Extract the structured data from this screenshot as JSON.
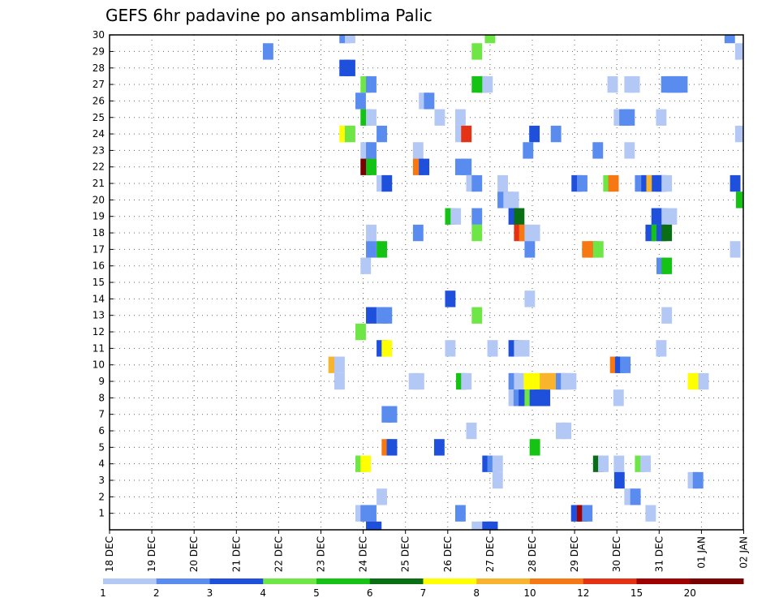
{
  "chart_data": {
    "type": "heatmap",
    "title": "GEFS 6hr padavine po ansamblima Palic",
    "x_tick_labels": [
      "18 DEC",
      "19 DEC",
      "20 DEC",
      "21 DEC",
      "22 DEC",
      "23 DEC",
      "24 DEC",
      "25 DEC",
      "26 DEC",
      "27 DEC",
      "28 DEC",
      "29 DEC",
      "30 DEC",
      "31 DEC",
      "01 JAN",
      "02 JAN"
    ],
    "y_tick_labels": [
      "1",
      "2",
      "3",
      "4",
      "5",
      "6",
      "7",
      "8",
      "9",
      "10",
      "11",
      "12",
      "13",
      "14",
      "15",
      "16",
      "17",
      "18",
      "19",
      "20",
      "21",
      "22",
      "23",
      "24",
      "25",
      "26",
      "27",
      "28",
      "29",
      "30"
    ],
    "xlim": [
      0,
      15
    ],
    "ylim": [
      0,
      30
    ],
    "grid": true,
    "colorbar": {
      "labels": [
        "1",
        "2",
        "3",
        "4",
        "5",
        "6",
        "7",
        "8",
        "10",
        "12",
        "15",
        "20"
      ],
      "colors": [
        "#b4c8f5",
        "#5a8cf0",
        "#1e50dc",
        "#6ee646",
        "#14c314",
        "#0a6e14",
        "#ffff00",
        "#f8b42d",
        "#f57814",
        "#e63214",
        "#a00000",
        "#7a0000"
      ]
    },
    "cells": [
      [
        5.56,
        30,
        1
      ],
      [
        5.69,
        30,
        0
      ],
      [
        9.0,
        30,
        3
      ],
      [
        14.67,
        30,
        1
      ],
      [
        14.92,
        29,
        0
      ],
      [
        3.75,
        29,
        1
      ],
      [
        8.69,
        29,
        3
      ],
      [
        5.56,
        28,
        2
      ],
      [
        5.69,
        28,
        2
      ],
      [
        6.06,
        27,
        3
      ],
      [
        6.19,
        27,
        1
      ],
      [
        8.69,
        27,
        4
      ],
      [
        8.82,
        27,
        4
      ],
      [
        8.94,
        27,
        0
      ],
      [
        11.9,
        27,
        0
      ],
      [
        12.3,
        27,
        0
      ],
      [
        12.42,
        27,
        0
      ],
      [
        13.17,
        27,
        1
      ],
      [
        13.3,
        27,
        1
      ],
      [
        13.42,
        27,
        1
      ],
      [
        13.55,
        27,
        1
      ],
      [
        5.94,
        26,
        1
      ],
      [
        7.44,
        26,
        0
      ],
      [
        7.56,
        26,
        1
      ],
      [
        6.06,
        25,
        4
      ],
      [
        6.19,
        25,
        0
      ],
      [
        7.81,
        25,
        0
      ],
      [
        8.3,
        25,
        0
      ],
      [
        12.05,
        25,
        0
      ],
      [
        12.18,
        25,
        1
      ],
      [
        12.3,
        25,
        1
      ],
      [
        13.05,
        25,
        0
      ],
      [
        5.56,
        24,
        6
      ],
      [
        5.69,
        24,
        3
      ],
      [
        6.44,
        24,
        1
      ],
      [
        8.3,
        24,
        0
      ],
      [
        8.44,
        24,
        9
      ],
      [
        10.05,
        24,
        2
      ],
      [
        10.56,
        24,
        1
      ],
      [
        14.92,
        24,
        0
      ],
      [
        6.06,
        23,
        0
      ],
      [
        6.19,
        23,
        1
      ],
      [
        7.3,
        23,
        0
      ],
      [
        9.9,
        23,
        1
      ],
      [
        11.55,
        23,
        1
      ],
      [
        12.3,
        23,
        0
      ],
      [
        6.06,
        22,
        11
      ],
      [
        6.19,
        22,
        4
      ],
      [
        7.3,
        22,
        8
      ],
      [
        7.44,
        22,
        2
      ],
      [
        8.3,
        22,
        1
      ],
      [
        8.44,
        22,
        1
      ],
      [
        6.44,
        21,
        0
      ],
      [
        6.56,
        21,
        2
      ],
      [
        8.56,
        21,
        0
      ],
      [
        8.69,
        21,
        1
      ],
      [
        9.3,
        21,
        0
      ],
      [
        11.05,
        21,
        2
      ],
      [
        11.18,
        21,
        1
      ],
      [
        11.8,
        21,
        3
      ],
      [
        11.92,
        21,
        8
      ],
      [
        12.55,
        21,
        1
      ],
      [
        12.7,
        21,
        2
      ],
      [
        12.82,
        21,
        7
      ],
      [
        12.95,
        21,
        2
      ],
      [
        13.05,
        21,
        2
      ],
      [
        13.18,
        21,
        0
      ],
      [
        14.8,
        21,
        2
      ],
      [
        9.3,
        20,
        1
      ],
      [
        9.44,
        20,
        0
      ],
      [
        9.56,
        20,
        0
      ],
      [
        14.94,
        20,
        4
      ],
      [
        8.06,
        19,
        4
      ],
      [
        8.19,
        19,
        0
      ],
      [
        8.69,
        19,
        1
      ],
      [
        9.56,
        19,
        2
      ],
      [
        9.69,
        19,
        5
      ],
      [
        12.94,
        19,
        2
      ],
      [
        13.06,
        19,
        2
      ],
      [
        13.18,
        19,
        0
      ],
      [
        13.3,
        19,
        0
      ],
      [
        6.19,
        18,
        0
      ],
      [
        7.3,
        18,
        1
      ],
      [
        8.69,
        18,
        3
      ],
      [
        9.69,
        18,
        9
      ],
      [
        9.81,
        18,
        8
      ],
      [
        9.94,
        18,
        0
      ],
      [
        10.06,
        18,
        0
      ],
      [
        12.8,
        18,
        2
      ],
      [
        12.94,
        18,
        4
      ],
      [
        13.06,
        18,
        2
      ],
      [
        13.18,
        18,
        5
      ],
      [
        6.19,
        17,
        1
      ],
      [
        6.44,
        17,
        4
      ],
      [
        9.94,
        17,
        1
      ],
      [
        11.3,
        17,
        8
      ],
      [
        11.44,
        17,
        8
      ],
      [
        11.56,
        17,
        3
      ],
      [
        14.8,
        17,
        0
      ],
      [
        6.06,
        16,
        0
      ],
      [
        13.06,
        16,
        1
      ],
      [
        13.18,
        16,
        4
      ],
      [
        8.06,
        14,
        2
      ],
      [
        9.94,
        14,
        0
      ],
      [
        6.19,
        13,
        2
      ],
      [
        6.44,
        13,
        1
      ],
      [
        6.56,
        13,
        1
      ],
      [
        8.69,
        13,
        3
      ],
      [
        13.18,
        13,
        0
      ],
      [
        5.94,
        12,
        3
      ],
      [
        6.44,
        11,
        2
      ],
      [
        6.56,
        11,
        6
      ],
      [
        8.06,
        11,
        0
      ],
      [
        9.06,
        11,
        0
      ],
      [
        9.56,
        11,
        2
      ],
      [
        9.69,
        11,
        0
      ],
      [
        9.81,
        11,
        0
      ],
      [
        13.05,
        11,
        0
      ],
      [
        5.3,
        10,
        7
      ],
      [
        5.44,
        10,
        0
      ],
      [
        11.96,
        10,
        8
      ],
      [
        12.08,
        10,
        2
      ],
      [
        12.2,
        10,
        1
      ],
      [
        5.44,
        9,
        0
      ],
      [
        7.2,
        9,
        0
      ],
      [
        7.32,
        9,
        0
      ],
      [
        8.32,
        9,
        4
      ],
      [
        8.44,
        9,
        0
      ],
      [
        9.56,
        9,
        1
      ],
      [
        9.69,
        9,
        0
      ],
      [
        9.92,
        9,
        6
      ],
      [
        10.06,
        9,
        6
      ],
      [
        10.18,
        9,
        6
      ],
      [
        10.3,
        9,
        7
      ],
      [
        10.42,
        9,
        7
      ],
      [
        10.56,
        9,
        7
      ],
      [
        10.68,
        9,
        1
      ],
      [
        10.8,
        9,
        0
      ],
      [
        10.92,
        9,
        0
      ],
      [
        13.8,
        9,
        6
      ],
      [
        13.92,
        9,
        6
      ],
      [
        14.05,
        9,
        0
      ],
      [
        9.56,
        8,
        0
      ],
      [
        9.68,
        8,
        1
      ],
      [
        9.8,
        8,
        2
      ],
      [
        9.94,
        8,
        3
      ],
      [
        10.06,
        8,
        2
      ],
      [
        10.18,
        8,
        2
      ],
      [
        10.3,
        8,
        2
      ],
      [
        12.04,
        8,
        0
      ],
      [
        6.56,
        7,
        1
      ],
      [
        6.68,
        7,
        1
      ],
      [
        8.56,
        6,
        0
      ],
      [
        10.68,
        6,
        0
      ],
      [
        10.8,
        6,
        0
      ],
      [
        6.56,
        5,
        8
      ],
      [
        6.68,
        5,
        2
      ],
      [
        7.8,
        5,
        2
      ],
      [
        10.06,
        5,
        4
      ],
      [
        5.94,
        4,
        3
      ],
      [
        6.06,
        4,
        6
      ],
      [
        8.94,
        4,
        2
      ],
      [
        9.06,
        4,
        1
      ],
      [
        9.18,
        4,
        0
      ],
      [
        11.56,
        4,
        5
      ],
      [
        11.68,
        4,
        0
      ],
      [
        12.05,
        4,
        0
      ],
      [
        12.55,
        4,
        3
      ],
      [
        12.68,
        4,
        0
      ],
      [
        9.18,
        3,
        0
      ],
      [
        12.06,
        3,
        2
      ],
      [
        13.8,
        3,
        0
      ],
      [
        13.92,
        3,
        1
      ],
      [
        6.44,
        2,
        0
      ],
      [
        12.3,
        2,
        0
      ],
      [
        12.44,
        2,
        1
      ],
      [
        5.94,
        1,
        0
      ],
      [
        6.06,
        1,
        1
      ],
      [
        6.19,
        1,
        1
      ],
      [
        8.3,
        1,
        1
      ],
      [
        11.04,
        1,
        2
      ],
      [
        11.18,
        1,
        10
      ],
      [
        11.3,
        1,
        1
      ],
      [
        12.8,
        1,
        0
      ],
      [
        6.19,
        0,
        2
      ],
      [
        6.31,
        0,
        2
      ],
      [
        8.69,
        0,
        0
      ],
      [
        8.82,
        0,
        0
      ],
      [
        8.94,
        0,
        2
      ],
      [
        9.06,
        0,
        2
      ]
    ]
  }
}
